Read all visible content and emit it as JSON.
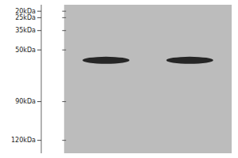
{
  "chart_data": {
    "type": "gel",
    "categories": [
      null,
      null
    ],
    "values": [
      58,
      58
    ],
    "color": "#111111",
    "ylim": [
      130,
      15
    ],
    "yticks": [
      {
        "value": 120,
        "label": "120kDa"
      },
      {
        "value": 90,
        "label": "90kDa"
      },
      {
        "value": 50,
        "label": "50kDa"
      },
      {
        "value": 35,
        "label": "35kDa"
      },
      {
        "value": 25,
        "label": "25kDa"
      },
      {
        "value": 20,
        "label": "20kDa"
      }
    ],
    "grid": false,
    "tick_labels": "y"
  }
}
